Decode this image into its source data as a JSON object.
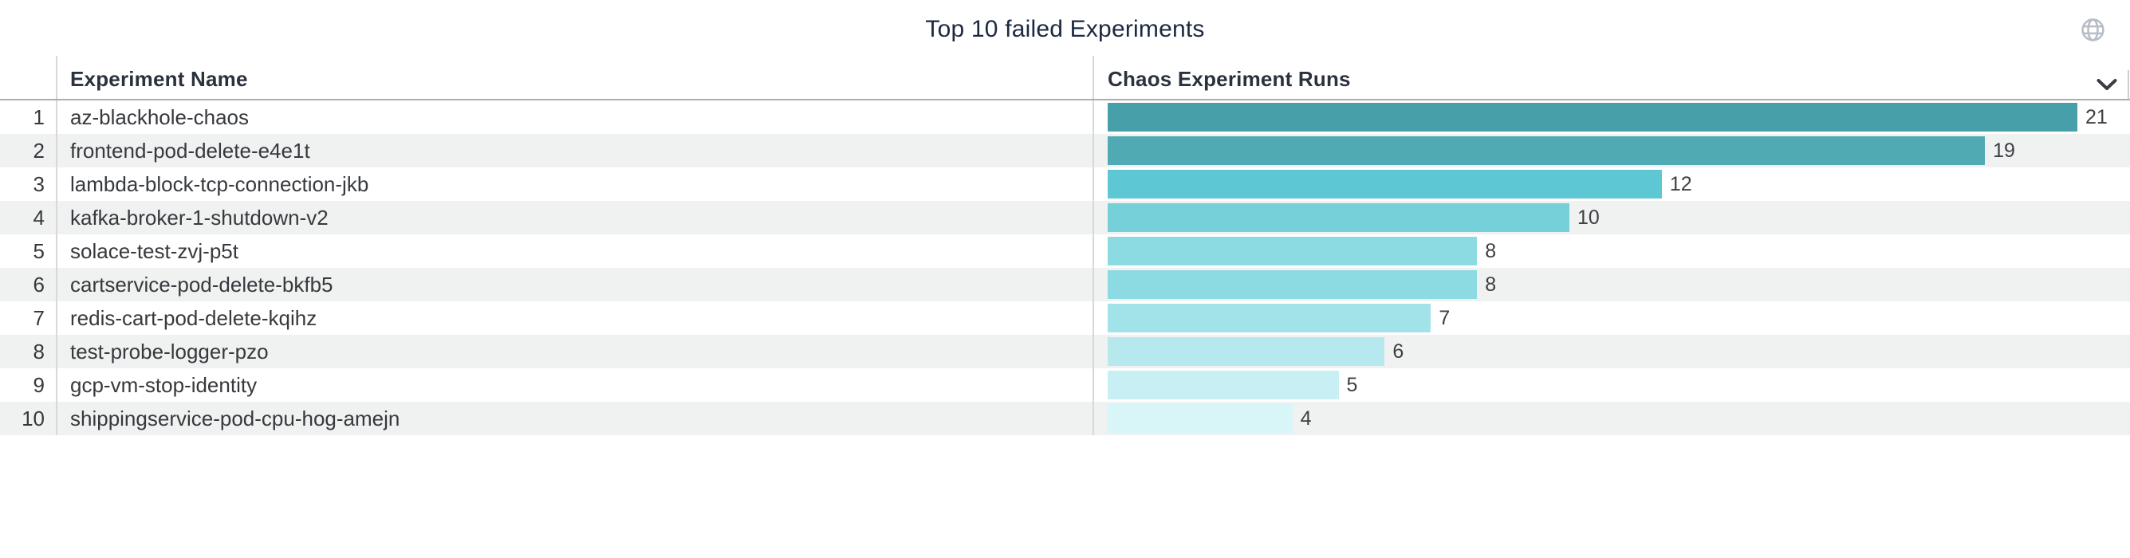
{
  "title": "Top 10 failed Experiments",
  "header": {
    "name_column": "Experiment Name",
    "metric_column": "Chaos Experiment Runs"
  },
  "icons": {
    "globe": "globe-icon",
    "sort": "chevron-down-icon"
  },
  "colors": {
    "title_text": "#1b2940",
    "header_text": "#2b323d",
    "row_text": "#36393d",
    "value_text": "#3c4043",
    "zebra_stripe": "#f0f1f1",
    "column_divider": "#d8d8d8",
    "header_border": "#adadad",
    "globe_icon": "#b7bdc8",
    "chevron_icon": "#3a3e44"
  },
  "rows": [
    {
      "rank": "1",
      "name": "az-blackhole-chaos",
      "runs": 21,
      "color": "#479fa9"
    },
    {
      "rank": "2",
      "name": "frontend-pod-delete-e4e1t",
      "runs": 19,
      "color": "#50aab4"
    },
    {
      "rank": "3",
      "name": "lambda-block-tcp-connection-jkb",
      "runs": 12,
      "color": "#5dc7d3"
    },
    {
      "rank": "4",
      "name": "kafka-broker-1-shutdown-v2",
      "runs": 10,
      "color": "#75d0da"
    },
    {
      "rank": "5",
      "name": "solace-test-zvj-p5t",
      "runs": 8,
      "color": "#8cdae2"
    },
    {
      "rank": "6",
      "name": "cartservice-pod-delete-bkfb5",
      "runs": 8,
      "color": "#8cdae2"
    },
    {
      "rank": "7",
      "name": "redis-cart-pod-delete-kqihz",
      "runs": 7,
      "color": "#a2e2e9"
    },
    {
      "rank": "8",
      "name": "test-probe-logger-pzo",
      "runs": 6,
      "color": "#b6e9ee"
    },
    {
      "rank": "9",
      "name": "gcp-vm-stop-identity",
      "runs": 5,
      "color": "#c8eff3"
    },
    {
      "rank": "10",
      "name": "shippingservice-pod-cpu-hog-amejn",
      "runs": 4,
      "color": "#d8f5f8"
    }
  ],
  "chart_data": {
    "type": "bar",
    "orientation": "horizontal",
    "title": "Top 10 failed Experiments",
    "categories": [
      "az-blackhole-chaos",
      "frontend-pod-delete-e4e1t",
      "lambda-block-tcp-connection-jkb",
      "kafka-broker-1-shutdown-v2",
      "solace-test-zvj-p5t",
      "cartservice-pod-delete-bkfb5",
      "redis-cart-pod-delete-kqihz",
      "test-probe-logger-pzo",
      "gcp-vm-stop-identity",
      "shippingservice-pod-cpu-hog-amejn"
    ],
    "values": [
      21,
      19,
      12,
      10,
      8,
      8,
      7,
      6,
      5,
      4
    ],
    "xlabel": "Chaos Experiment Runs",
    "ylabel": "Experiment Name",
    "xlim": [
      0,
      21
    ],
    "grid": false,
    "legend": "none",
    "value_labels": "right of bar end",
    "bar_colors": [
      "#479fa9",
      "#50aab4",
      "#5dc7d3",
      "#75d0da",
      "#8cdae2",
      "#8cdae2",
      "#a2e2e9",
      "#b6e9ee",
      "#c8eff3",
      "#d8f5f8"
    ],
    "color_scale": "sequential teal, darker = more runs",
    "sort": "descending by Chaos Experiment Runs"
  }
}
